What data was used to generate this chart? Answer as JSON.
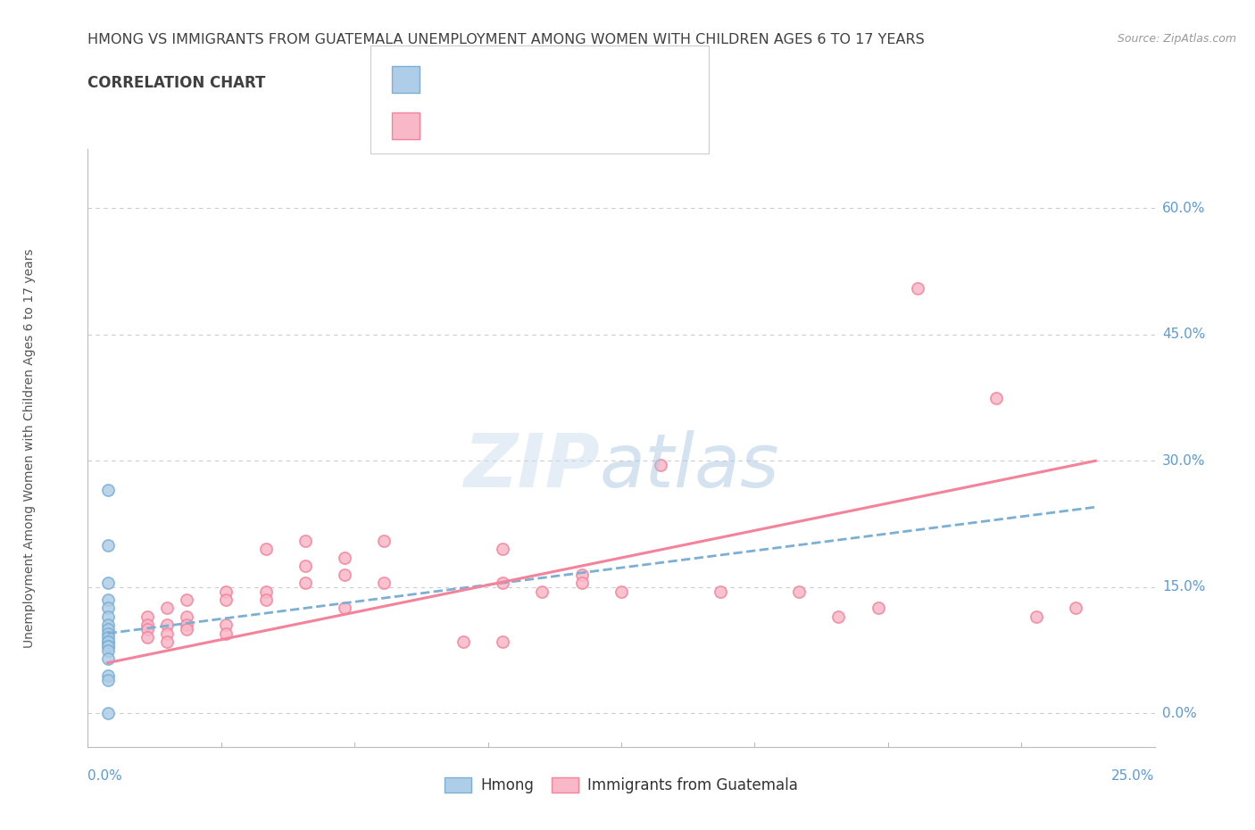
{
  "title_line1": "HMONG VS IMMIGRANTS FROM GUATEMALA UNEMPLOYMENT AMONG WOMEN WITH CHILDREN AGES 6 TO 17 YEARS",
  "title_line2": "CORRELATION CHART",
  "source": "Source: ZipAtlas.com",
  "ylabel_label": "Unemployment Among Women with Children Ages 6 to 17 years",
  "ytick_labels": [
    "0.0%",
    "15.0%",
    "30.0%",
    "45.0%",
    "60.0%"
  ],
  "ytick_values": [
    0.0,
    0.15,
    0.3,
    0.45,
    0.6
  ],
  "xtick_labels": [
    "0.0%",
    "25.0%"
  ],
  "xtick_values": [
    0.0,
    0.25
  ],
  "xlim": [
    -0.005,
    0.265
  ],
  "ylim": [
    -0.04,
    0.67
  ],
  "hmong_color": "#7bafd4",
  "hmong_fill": "#aecde8",
  "guatemala_color": "#f4829a",
  "guatemala_fill": "#f9b8c8",
  "hmong_scatter": [
    [
      0.0,
      0.265
    ],
    [
      0.0,
      0.2
    ],
    [
      0.0,
      0.155
    ],
    [
      0.0,
      0.135
    ],
    [
      0.0,
      0.125
    ],
    [
      0.0,
      0.115
    ],
    [
      0.0,
      0.105
    ],
    [
      0.0,
      0.1
    ],
    [
      0.0,
      0.095
    ],
    [
      0.0,
      0.09
    ],
    [
      0.0,
      0.085
    ],
    [
      0.0,
      0.085
    ],
    [
      0.0,
      0.08
    ],
    [
      0.0,
      0.08
    ],
    [
      0.0,
      0.075
    ],
    [
      0.0,
      0.065
    ],
    [
      0.0,
      0.045
    ],
    [
      0.0,
      0.04
    ],
    [
      0.0,
      0.0
    ]
  ],
  "guatemala_scatter": [
    [
      0.01,
      0.115
    ],
    [
      0.01,
      0.105
    ],
    [
      0.01,
      0.1
    ],
    [
      0.01,
      0.09
    ],
    [
      0.015,
      0.125
    ],
    [
      0.015,
      0.105
    ],
    [
      0.015,
      0.095
    ],
    [
      0.015,
      0.085
    ],
    [
      0.02,
      0.135
    ],
    [
      0.02,
      0.115
    ],
    [
      0.02,
      0.105
    ],
    [
      0.02,
      0.1
    ],
    [
      0.03,
      0.145
    ],
    [
      0.03,
      0.135
    ],
    [
      0.03,
      0.105
    ],
    [
      0.03,
      0.095
    ],
    [
      0.04,
      0.195
    ],
    [
      0.04,
      0.145
    ],
    [
      0.04,
      0.135
    ],
    [
      0.05,
      0.205
    ],
    [
      0.05,
      0.175
    ],
    [
      0.05,
      0.155
    ],
    [
      0.06,
      0.185
    ],
    [
      0.06,
      0.165
    ],
    [
      0.06,
      0.125
    ],
    [
      0.07,
      0.205
    ],
    [
      0.07,
      0.155
    ],
    [
      0.09,
      0.085
    ],
    [
      0.1,
      0.195
    ],
    [
      0.1,
      0.155
    ],
    [
      0.1,
      0.085
    ],
    [
      0.11,
      0.145
    ],
    [
      0.12,
      0.165
    ],
    [
      0.12,
      0.155
    ],
    [
      0.13,
      0.145
    ],
    [
      0.14,
      0.295
    ],
    [
      0.155,
      0.145
    ],
    [
      0.175,
      0.145
    ],
    [
      0.185,
      0.115
    ],
    [
      0.195,
      0.125
    ],
    [
      0.205,
      0.505
    ],
    [
      0.225,
      0.375
    ],
    [
      0.235,
      0.115
    ],
    [
      0.245,
      0.125
    ]
  ],
  "hmong_trend_x": [
    0.0,
    0.25
  ],
  "hmong_trend_y": [
    0.095,
    0.245
  ],
  "guatemala_trend_x": [
    0.0,
    0.25
  ],
  "guatemala_trend_y": [
    0.06,
    0.3
  ],
  "background_color": "#ffffff",
  "grid_color": "#cccccc",
  "title_color": "#404040",
  "ylabel_color": "#555555",
  "tick_label_color": "#5b9bd5",
  "source_color": "#999999",
  "text_color": "#333333"
}
